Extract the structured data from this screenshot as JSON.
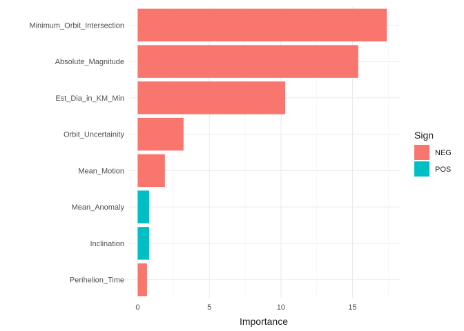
{
  "chart_data": {
    "type": "bar",
    "orientation": "horizontal",
    "categories": [
      "Minimum_Orbit_Intersection",
      "Absolute_Magnitude",
      "Est_Dia_in_KM_Min",
      "Orbit_Uncertainity",
      "Mean_Motion",
      "Mean_Anomaly",
      "Inclination",
      "Perihelion_Time"
    ],
    "values": [
      17.4,
      15.4,
      10.3,
      3.2,
      1.9,
      0.8,
      0.8,
      0.65
    ],
    "sign": [
      "NEG",
      "NEG",
      "NEG",
      "NEG",
      "NEG",
      "POS",
      "POS",
      "NEG"
    ],
    "xlabel": "Importance",
    "ylabel": "",
    "title": "",
    "xlim": [
      -0.6,
      18.3
    ],
    "x_ticks": [
      0,
      5,
      10,
      15
    ],
    "grid": true,
    "legend": {
      "title": "Sign",
      "position": "right",
      "entries": [
        {
          "label": "NEG",
          "color": "#f8766d"
        },
        {
          "label": "POS",
          "color": "#00bfc4"
        }
      ]
    }
  }
}
